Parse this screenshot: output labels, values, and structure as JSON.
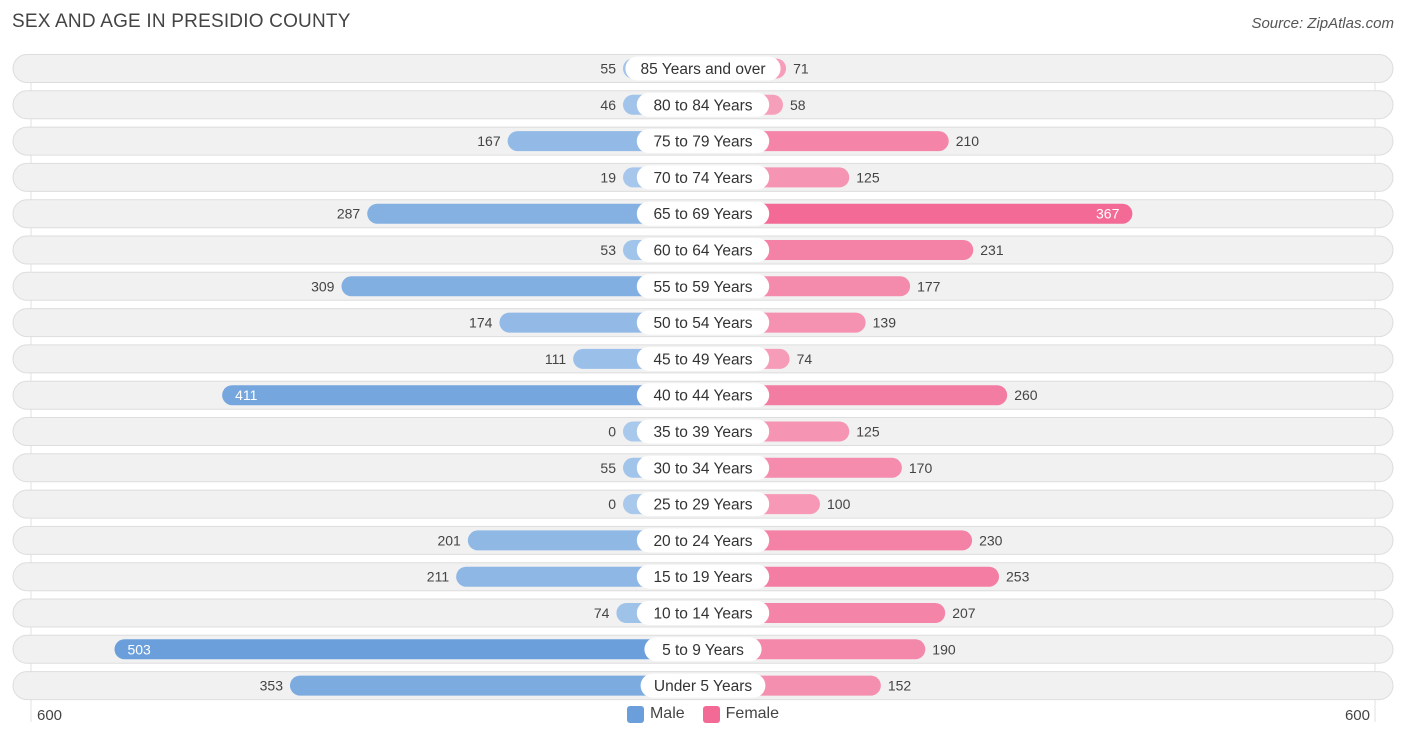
{
  "title": "SEX AND AGE IN PRESIDIO COUNTY",
  "source": "Source: ZipAtlas.com",
  "colors": {
    "male_light": "#a8c8ec",
    "male_strong": "#6a9fdb",
    "female_light": "#f7a9c2",
    "female_strong": "#f26a95",
    "row_bg": "#f0f0f0",
    "row_border": "#dddddd"
  },
  "chart_data": {
    "type": "bar",
    "orientation": "horizontal-diverging",
    "categories": [
      "85 Years and over",
      "80 to 84 Years",
      "75 to 79 Years",
      "70 to 74 Years",
      "65 to 69 Years",
      "60 to 64 Years",
      "55 to 59 Years",
      "50 to 54 Years",
      "45 to 49 Years",
      "40 to 44 Years",
      "35 to 39 Years",
      "30 to 34 Years",
      "25 to 29 Years",
      "20 to 24 Years",
      "15 to 19 Years",
      "10 to 14 Years",
      "5 to 9 Years",
      "Under 5 Years"
    ],
    "series": [
      {
        "name": "Male",
        "values": [
          55,
          46,
          167,
          19,
          287,
          53,
          309,
          174,
          111,
          411,
          0,
          55,
          0,
          201,
          211,
          74,
          503,
          353
        ]
      },
      {
        "name": "Female",
        "values": [
          71,
          58,
          210,
          125,
          367,
          231,
          177,
          139,
          74,
          260,
          125,
          170,
          100,
          230,
          253,
          207,
          190,
          152
        ]
      }
    ],
    "xlim": [
      -600,
      600
    ],
    "axis_labels": {
      "left": "600",
      "right": "600"
    },
    "legend": {
      "position": "bottom-center",
      "items": [
        "Male",
        "Female"
      ]
    }
  }
}
